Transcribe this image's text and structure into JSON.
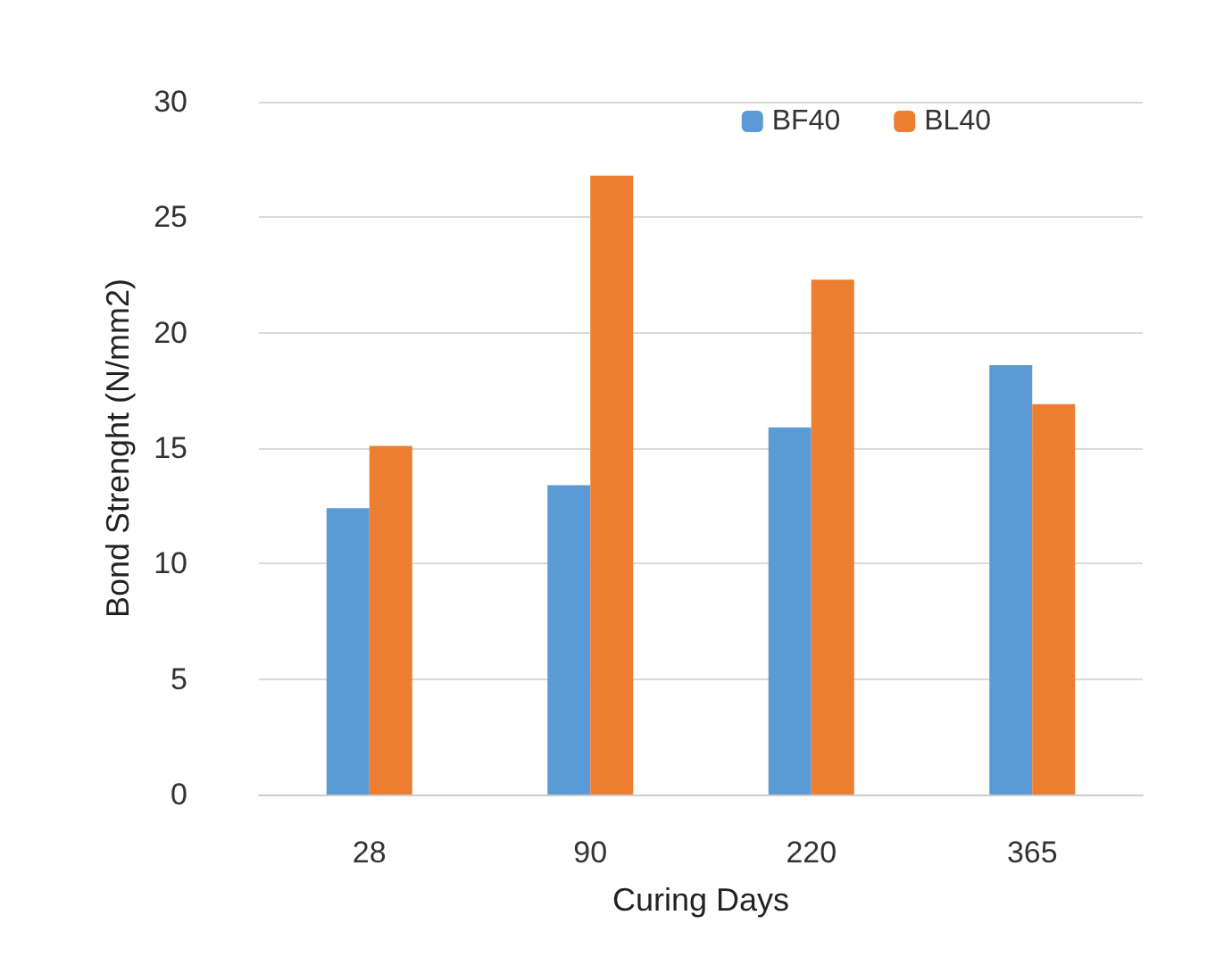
{
  "chart_data": {
    "type": "bar",
    "xlabel": "Curing Days",
    "ylabel": "Bond Strenght (N/mm2)",
    "categories": [
      "28",
      "90",
      "220",
      "365"
    ],
    "series": [
      {
        "name": "BF40",
        "color": "#5b9bd5",
        "values": [
          12.4,
          13.4,
          15.9,
          18.6
        ]
      },
      {
        "name": "BL40",
        "color": "#ed7d31",
        "values": [
          15.1,
          26.8,
          22.3,
          16.9
        ]
      }
    ],
    "ylim": [
      0,
      30
    ],
    "yticks": [
      0,
      5,
      10,
      15,
      20,
      25,
      30
    ],
    "grid": "y",
    "legend": "top right"
  }
}
